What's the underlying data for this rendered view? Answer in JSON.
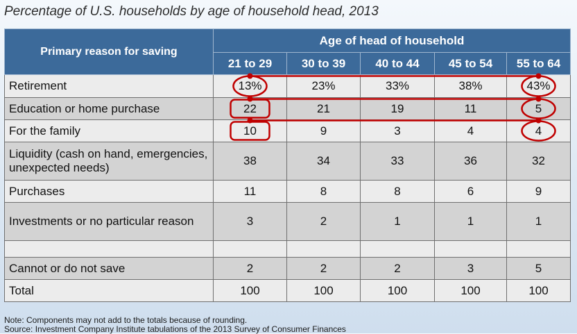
{
  "title": "Percentage of U.S. households by age of household head, 2013",
  "header": {
    "row_label": "Primary reason for saving",
    "group_label": "Age of head of household"
  },
  "notes": [
    "Note: Components may not add to the totals because of rounding.",
    "Source: Investment Company Institute tabulations of the 2013 Survey of Consumer Finances"
  ],
  "colors": {
    "header_bg": "#3c6a9a",
    "highlight": "#c00000"
  },
  "chart_data": {
    "type": "table",
    "columns": [
      "21 to 29",
      "30 to 39",
      "40 to 44",
      "45 to 54",
      "55 to 64"
    ],
    "rows": [
      {
        "label": "Retirement",
        "values": [
          "13%",
          "23%",
          "33%",
          "38%",
          "43%"
        ]
      },
      {
        "label": "Education or home purchase",
        "values": [
          "22",
          "21",
          "19",
          "11",
          "5"
        ]
      },
      {
        "label": "For the family",
        "values": [
          "10",
          "9",
          "3",
          "4",
          "4"
        ]
      },
      {
        "label": "Liquidity (cash on hand, emergencies, unexpected needs)",
        "values": [
          "38",
          "34",
          "33",
          "36",
          "32"
        ]
      },
      {
        "label": "Purchases",
        "values": [
          "11",
          "8",
          "8",
          "6",
          "9"
        ]
      },
      {
        "label": "Investments or no particular reason",
        "values": [
          "3",
          "2",
          "1",
          "1",
          "1"
        ]
      },
      {
        "label": "",
        "values": [
          "",
          "",
          "",
          "",
          ""
        ]
      },
      {
        "label": "Cannot or do not save",
        "values": [
          "2",
          "2",
          "2",
          "3",
          "5"
        ]
      },
      {
        "label": "Total",
        "values": [
          "100",
          "100",
          "100",
          "100",
          "100"
        ]
      }
    ]
  }
}
